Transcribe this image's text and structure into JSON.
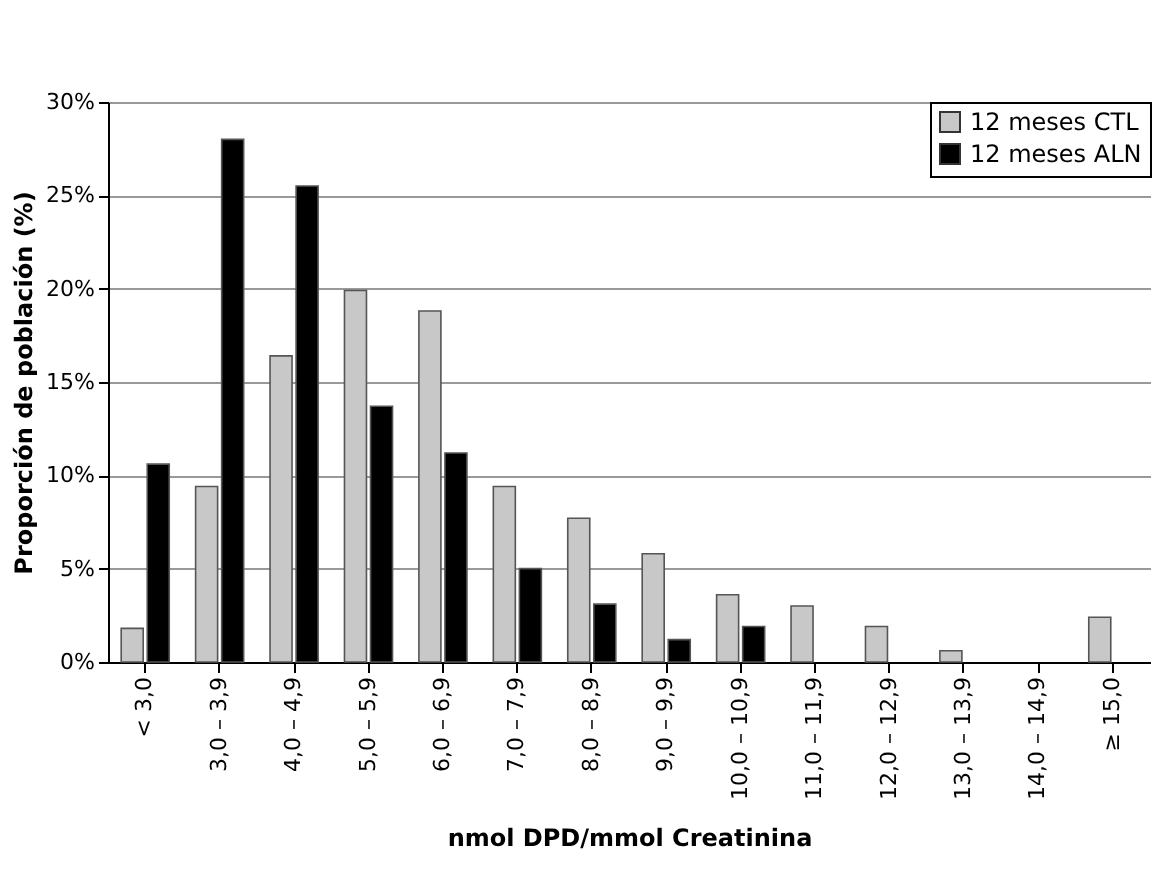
{
  "chart_data": {
    "type": "bar",
    "ylabel": "Proporción de población (%)",
    "xlabel": "nmol DPD/mmol Creatinina",
    "categories": [
      "< 3,0",
      "3,0 – 3,9",
      "4,0 – 4,9",
      "5,0 – 5,9",
      "6,0 – 6,9",
      "7,0 – 7,9",
      "8,0 – 8,9",
      "9,0 – 9,9",
      "10,0 – 10,9",
      "11,0 – 11,9",
      "12,0 – 12,9",
      "13,0 – 13,9",
      "14,0 – 14,9",
      "≥ 15,0"
    ],
    "series": [
      {
        "name": "12 meses CTL",
        "color": "#c8c8c8",
        "values": [
          1.8,
          9.4,
          16.4,
          19.9,
          18.8,
          9.4,
          7.7,
          5.8,
          3.6,
          3.0,
          1.9,
          0.6,
          0,
          2.4
        ]
      },
      {
        "name": "12 meses ALN",
        "color": "#000000",
        "values": [
          10.6,
          28.0,
          25.5,
          13.7,
          11.2,
          5.0,
          3.1,
          1.2,
          1.9,
          0,
          0,
          0,
          0,
          0
        ]
      }
    ],
    "ylim": [
      0,
      30
    ],
    "yticks": [
      {
        "value": 0,
        "label": "0%"
      },
      {
        "value": 5,
        "label": "5%"
      },
      {
        "value": 10,
        "label": "10%"
      },
      {
        "value": 15,
        "label": "15%"
      },
      {
        "value": 20,
        "label": "20%"
      },
      {
        "value": 25,
        "label": "25%"
      },
      {
        "value": 30,
        "label": "30%"
      }
    ],
    "grid": "y",
    "legend": "top right"
  }
}
